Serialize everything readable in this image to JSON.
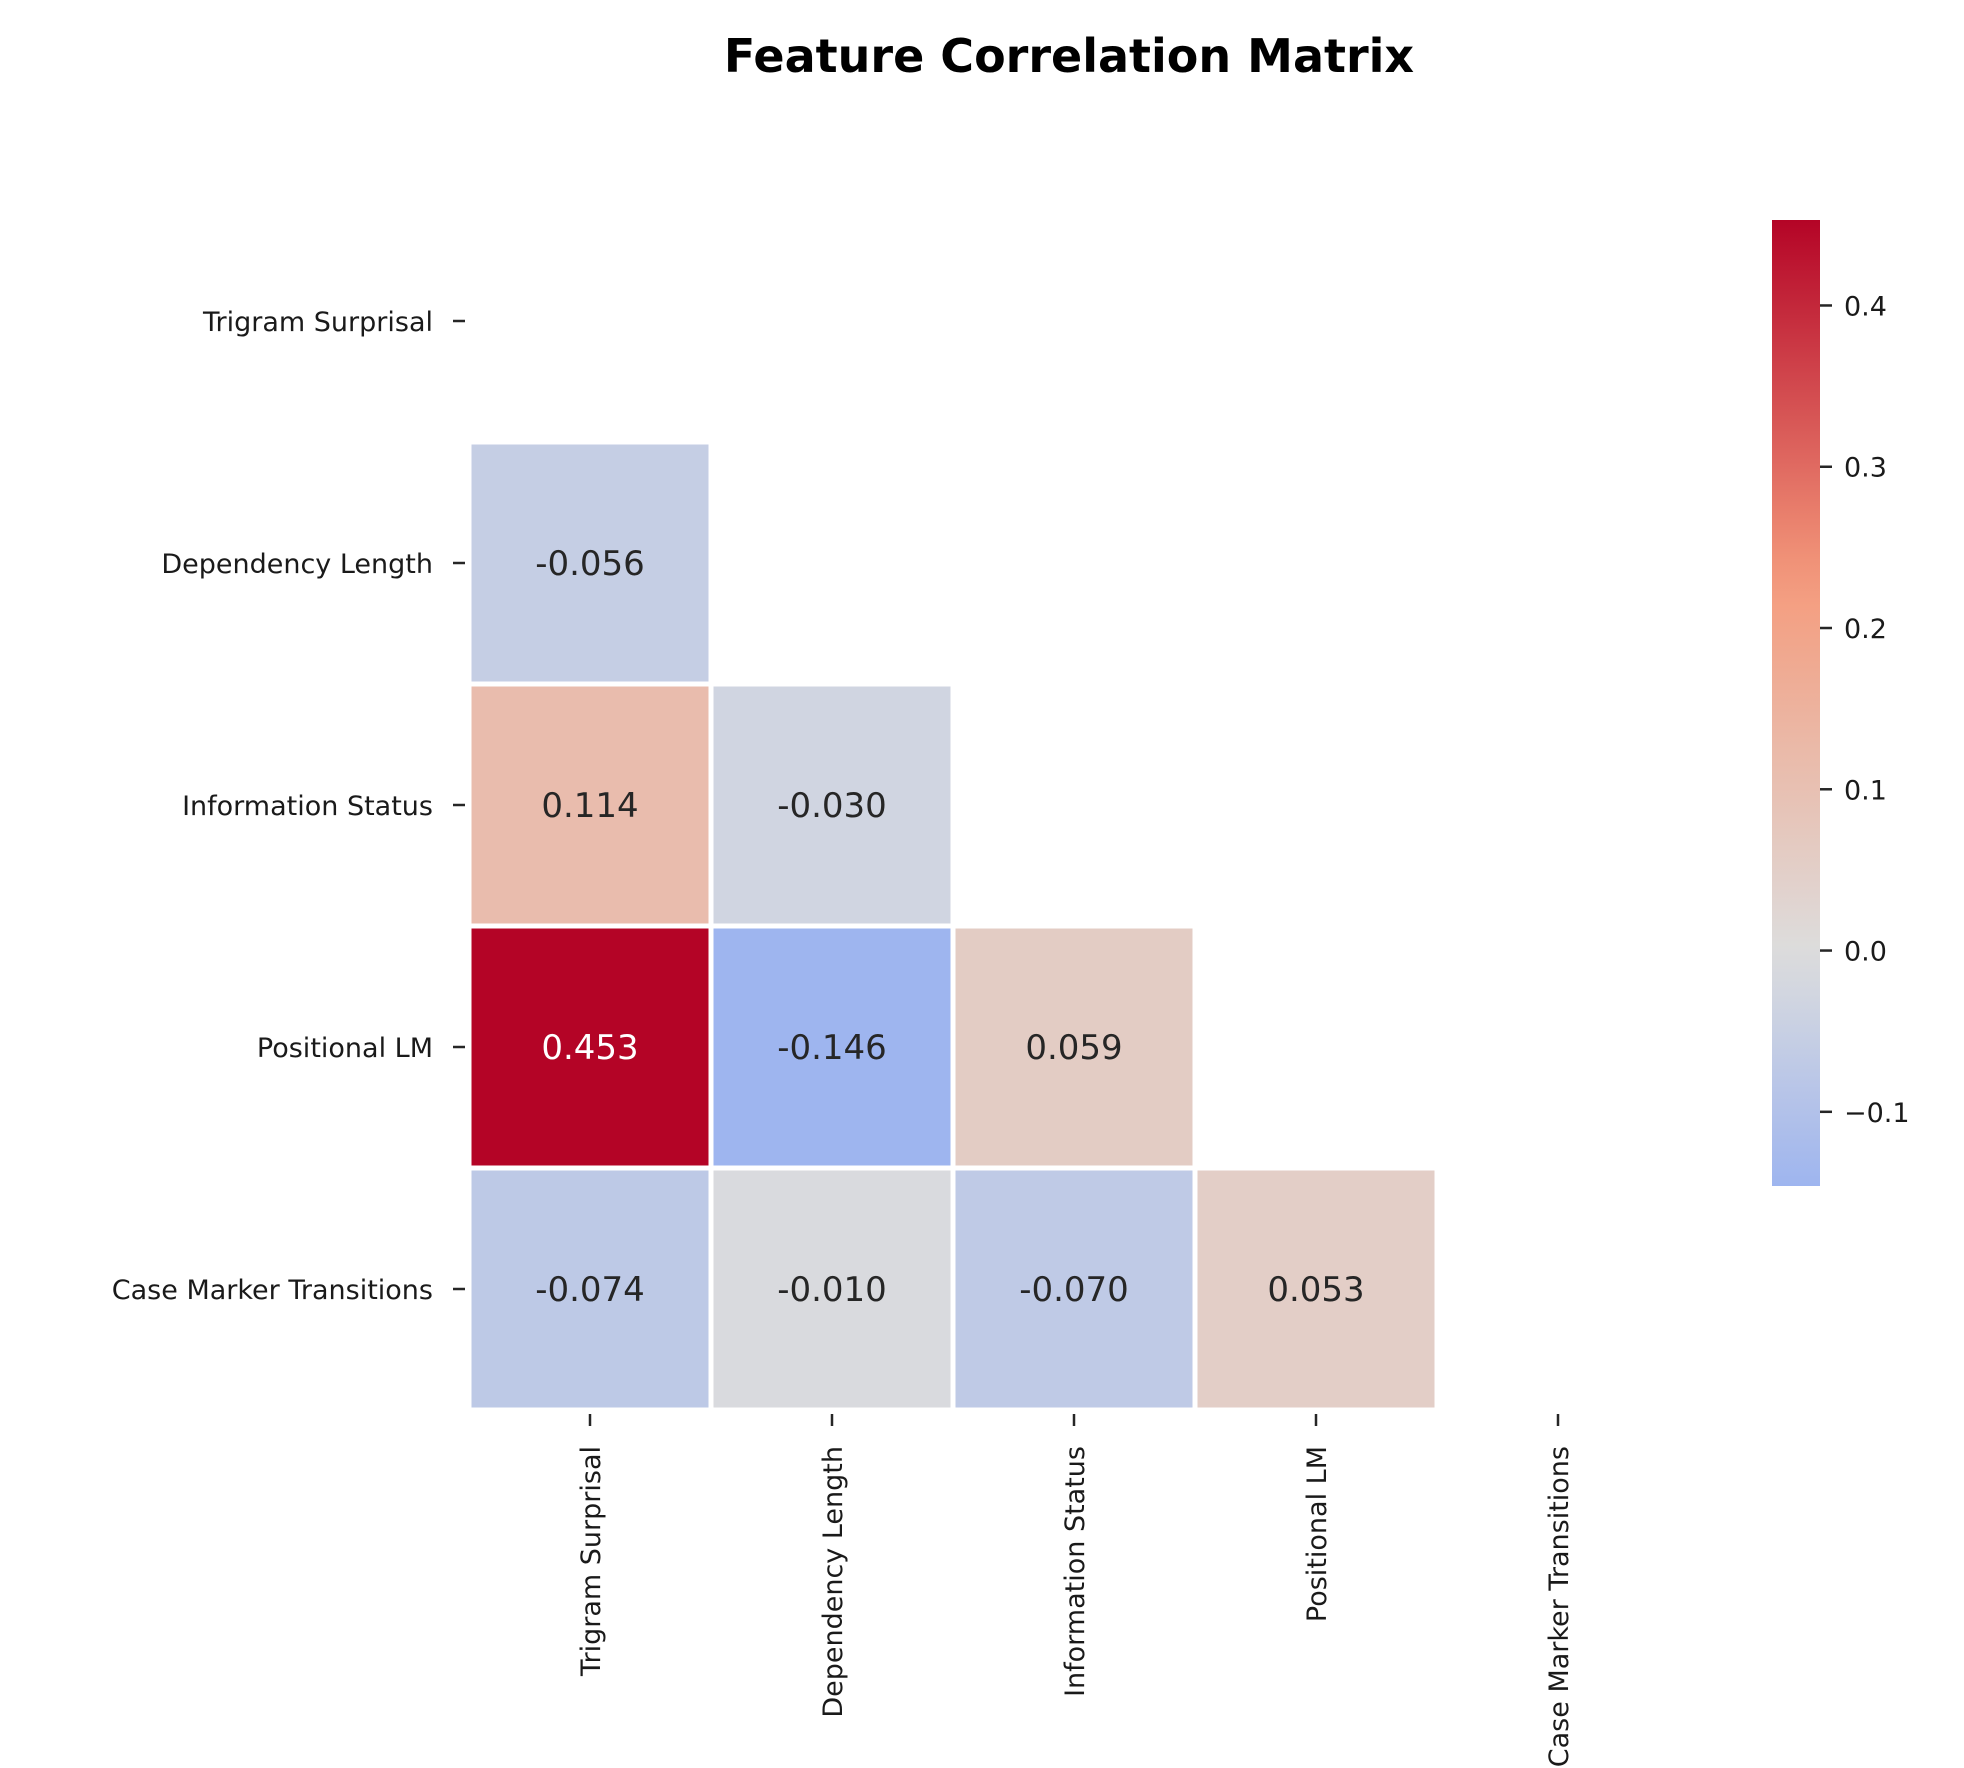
{
  "chart_data": {
    "type": "heatmap",
    "title": "Feature Correlation Matrix",
    "variables": [
      "Trigram Surprisal",
      "Dependency Length",
      "Information Status",
      "Positional LM",
      "Case Marker Transitions"
    ],
    "mask": "upper-triangle-including-diagonal",
    "cells": [
      {
        "row": "Dependency Length",
        "col": "Trigram Surprisal",
        "value": -0.056,
        "label": "-0.056"
      },
      {
        "row": "Information Status",
        "col": "Trigram Surprisal",
        "value": 0.114,
        "label": "0.114"
      },
      {
        "row": "Information Status",
        "col": "Dependency Length",
        "value": -0.03,
        "label": "-0.030"
      },
      {
        "row": "Positional LM",
        "col": "Trigram Surprisal",
        "value": 0.453,
        "label": "0.453"
      },
      {
        "row": "Positional LM",
        "col": "Dependency Length",
        "value": -0.146,
        "label": "-0.146"
      },
      {
        "row": "Positional LM",
        "col": "Information Status",
        "value": 0.059,
        "label": "0.059"
      },
      {
        "row": "Case Marker Transitions",
        "col": "Trigram Surprisal",
        "value": -0.074,
        "label": "-0.074"
      },
      {
        "row": "Case Marker Transitions",
        "col": "Dependency Length",
        "value": -0.01,
        "label": "-0.010"
      },
      {
        "row": "Case Marker Transitions",
        "col": "Information Status",
        "value": -0.07,
        "label": "-0.070"
      },
      {
        "row": "Case Marker Transitions",
        "col": "Positional LM",
        "value": 0.053,
        "label": "0.053"
      }
    ],
    "colormap": "coolwarm",
    "color_center": 0.0,
    "colorbar": {
      "min": -0.146,
      "max": 0.453,
      "ticks": [
        -0.1,
        0.0,
        0.1,
        0.2,
        0.3,
        0.4
      ],
      "tick_labels": [
        "−0.1",
        "0.0",
        "0.1",
        "0.2",
        "0.3",
        "0.4"
      ]
    },
    "grid": false
  }
}
